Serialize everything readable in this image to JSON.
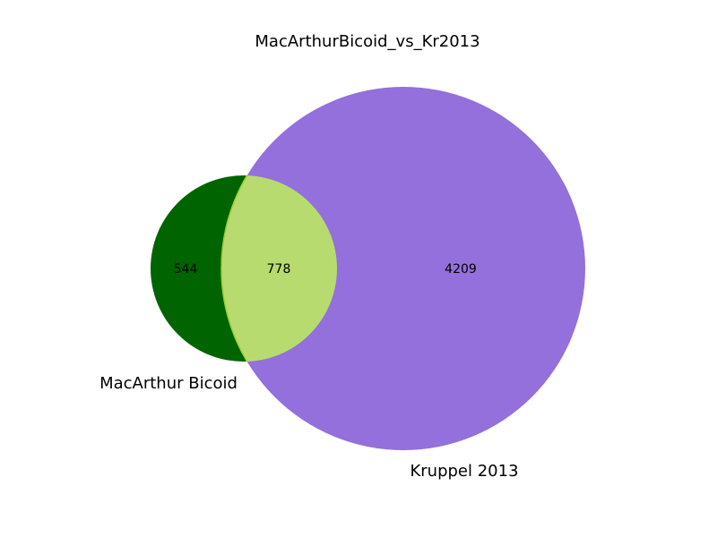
{
  "figure": {
    "title": "MacArthurBicoid_vs_Kr2013"
  },
  "sets": {
    "left": {
      "label": "MacArthur Bicoid",
      "only_count": "544",
      "color": "#006400"
    },
    "right": {
      "label": "Kruppel 2013",
      "only_count": "4209",
      "color": "#9370DB"
    }
  },
  "intersection": {
    "count": "778",
    "color": "#B8DB70",
    "stroke_color": "#9ACD32"
  }
}
